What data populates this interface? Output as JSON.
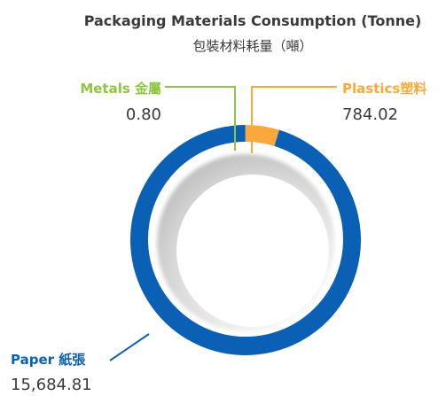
{
  "chart_data": {
    "type": "pie",
    "variant": "donut",
    "title": "Packaging Materials Consumption (Tonne)",
    "subtitle": "包裝材料耗量（噸）",
    "slices": [
      {
        "label": "Metals 金屬",
        "value": 0.8,
        "value_text": "0.80",
        "color": "#8dc63f"
      },
      {
        "label": "Plastics塑料",
        "value": 784.02,
        "value_text": "784.02",
        "color": "#f9a93b"
      },
      {
        "label": "Paper 紙張",
        "value": 15684.81,
        "value_text": "15,684.81",
        "color": "#0a60b4"
      }
    ],
    "legend": "none"
  }
}
